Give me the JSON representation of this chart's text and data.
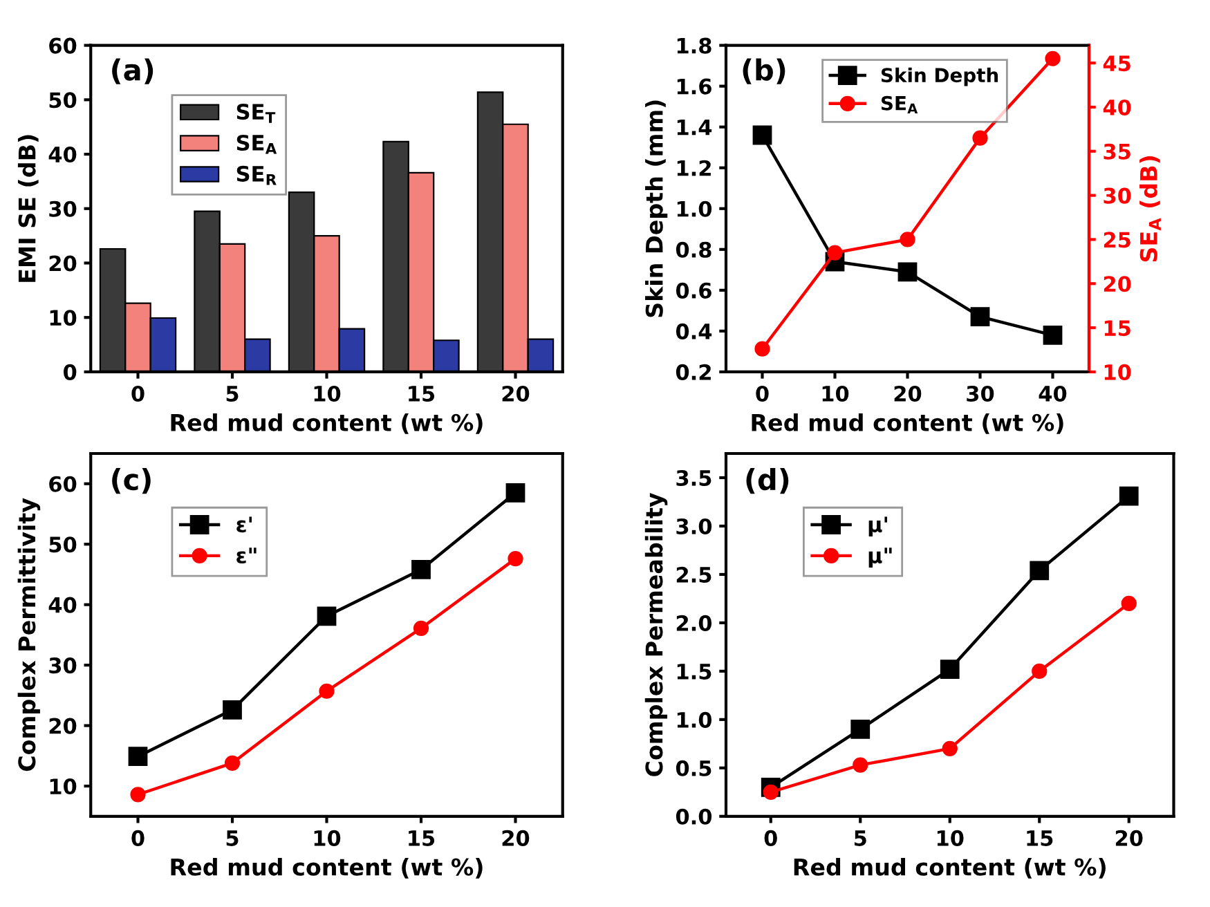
{
  "chart_data": [
    {
      "type": "bar",
      "xlabel": "Red mud content (wt %)",
      "ylabel": "EMI SE (dB)",
      "annotations": [
        "(a)"
      ],
      "categories": [
        "0",
        "5",
        "10",
        "15",
        "20"
      ],
      "ylim": [
        0,
        60
      ],
      "yticks": [
        0,
        10,
        20,
        30,
        40,
        50,
        60
      ],
      "legend": "top left",
      "grid": false,
      "series": [
        {
          "name": "SE$_{T}$",
          "color": "#3a3a3a",
          "values": [
            22.6,
            29.5,
            33.0,
            42.3,
            51.4
          ]
        },
        {
          "name": "SE$_{A}$",
          "color": "#f4827c",
          "values": [
            12.6,
            23.5,
            25.0,
            36.6,
            45.5
          ]
        },
        {
          "name": "SE$_{R}$",
          "color": "#2b3ba3",
          "values": [
            9.9,
            6.0,
            7.9,
            5.8,
            6.0
          ]
        }
      ]
    },
    {
      "type": "line",
      "xlabel": "Red mud content (wt %)",
      "ylabel": "Skin Depth (mm)",
      "y2label": "SE$_{A}$ (dB)",
      "annotations": [
        "(b)"
      ],
      "x": [
        0,
        10,
        20,
        30,
        40
      ],
      "xlim": [
        -5,
        45
      ],
      "xticks": [
        0,
        10,
        20,
        30,
        40
      ],
      "ylim": [
        0.2,
        1.8
      ],
      "yticks": [
        0.2,
        0.4,
        0.6,
        0.8,
        {
          "value": 1,
          "label": "1.0"
        },
        1.2,
        1.4,
        1.6,
        1.8
      ],
      "y2lim": [
        10,
        47
      ],
      "y2ticks": [
        10,
        15,
        20,
        25,
        30,
        35,
        40,
        45
      ],
      "legend": "top",
      "grid": false,
      "series": [
        {
          "name": "Skin Depth",
          "color": "#000000",
          "marker": "square",
          "values": [
            1.36,
            0.74,
            0.69,
            0.47,
            0.38
          ]
        },
        {
          "name": "SE$_{A}$",
          "color": "#ff0000",
          "marker": "circle",
          "axis": "y2",
          "values": [
            12.6,
            23.5,
            25.0,
            36.5,
            45.5
          ]
        }
      ]
    },
    {
      "type": "line",
      "xlabel": "Red mud content (wt %)",
      "ylabel": "Complex Permittivity",
      "annotations": [
        "(c)"
      ],
      "x": [
        0,
        5,
        10,
        15,
        20
      ],
      "xlim": [
        -2.5,
        22.5
      ],
      "xticks": [
        0,
        5,
        10,
        15,
        20
      ],
      "ylim": [
        5,
        65
      ],
      "yticks": [
        10,
        20,
        30,
        40,
        50,
        60
      ],
      "legend": "top left",
      "grid": false,
      "series": [
        {
          "name": "ε'",
          "color": "#000000",
          "marker": "square",
          "values": [
            14.9,
            22.6,
            38.1,
            45.8,
            58.5
          ]
        },
        {
          "name": "ε\"",
          "color": "#ff0000",
          "marker": "circle",
          "values": [
            8.6,
            13.8,
            25.7,
            36.1,
            47.6
          ]
        }
      ]
    },
    {
      "type": "line",
      "xlabel": "Red mud content (wt %)",
      "ylabel": "Complex Permeability",
      "annotations": [
        "(d)"
      ],
      "x": [
        0,
        5,
        10,
        15,
        20
      ],
      "xlim": [
        -2.5,
        22.5
      ],
      "xticks": [
        0,
        5,
        10,
        15,
        20
      ],
      "ylim": [
        0,
        3.75
      ],
      "yticks": [
        {
          "value": 0,
          "label": "0.0"
        },
        0.5,
        {
          "value": 1,
          "label": "1.0"
        },
        1.5,
        {
          "value": 2,
          "label": "2.0"
        },
        2.5,
        {
          "value": 3,
          "label": "3.0"
        },
        3.5
      ],
      "legend": "top left",
      "grid": false,
      "series": [
        {
          "name": "μ'",
          "color": "#000000",
          "marker": "square",
          "values": [
            0.3,
            0.9,
            1.52,
            2.54,
            3.31
          ]
        },
        {
          "name": "μ\"",
          "color": "#ff0000",
          "marker": "circle",
          "values": [
            0.25,
            0.53,
            0.7,
            1.5,
            2.2
          ]
        }
      ]
    }
  ]
}
